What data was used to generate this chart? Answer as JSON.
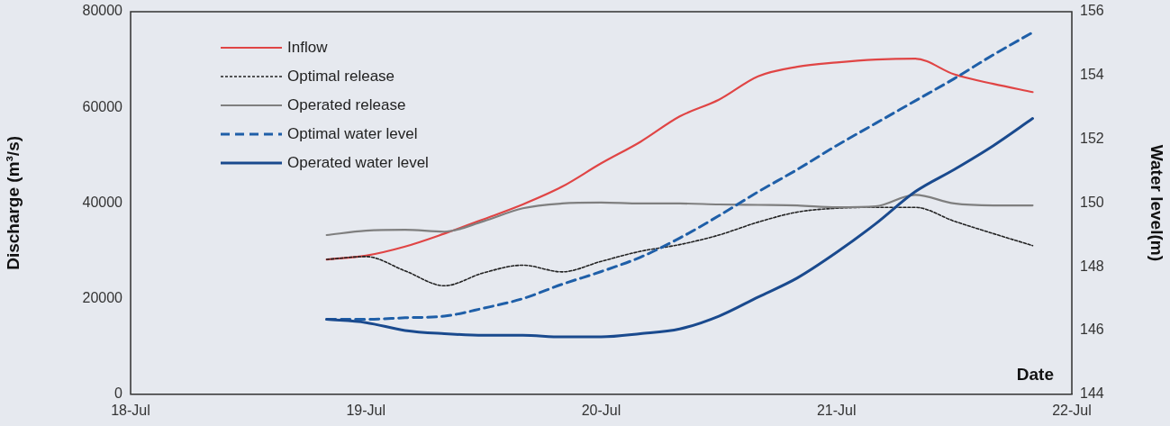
{
  "chart_data": {
    "type": "line",
    "xlabel": "Date",
    "ylabel": "Discharge (m³/s)",
    "y2label": "Water level(m)",
    "x": [
      "--07-18T20:00",
      "--07-19T00:00",
      "--07-19T04:00",
      "--07-19T08:00",
      "--07-19T12:00",
      "--07-19T16:00",
      "--07-19T20:00",
      "--07-20T00:00",
      "--07-20T04:00",
      "--07-20T08:00",
      "--07-20T12:00",
      "--07-20T16:00",
      "--07-20T20:00",
      "--07-21T00:00",
      "--07-21T04:00",
      "--07-21T08:00",
      "--07-21T12:00",
      "--07-21T16:00",
      "--07-21T20:00"
    ],
    "series": [
      {
        "name": "Inflow",
        "color": "#e04545",
        "line_style": "solid",
        "values": [
          28200,
          29000,
          30900,
          33600,
          36600,
          39700,
          43400,
          48300,
          52800,
          58100,
          61600,
          66500,
          68500,
          69400,
          70000,
          70200,
          66900,
          64900,
          63200
        ]
      },
      {
        "name": "Optimal release",
        "color": "#222222",
        "line_style": "dashed",
        "values": [
          28200,
          28800,
          25800,
          22700,
          25400,
          27000,
          25600,
          27800,
          29900,
          31300,
          33300,
          36000,
          38100,
          38900,
          39100,
          39100,
          36200,
          33600,
          31100
        ]
      },
      {
        "name": "Operated release",
        "color": "#7f7f7f",
        "line_style": "solid",
        "values": [
          33300,
          34200,
          34400,
          34000,
          36200,
          38900,
          39900,
          40100,
          39900,
          39900,
          39700,
          39600,
          39500,
          39100,
          39300,
          41700,
          39900,
          39500,
          39500
        ]
      },
      {
        "name": "Optimal water level",
        "color": "#1f5fa8",
        "line_style": "dashed",
        "axis": "y2",
        "values": [
          146.35,
          146.35,
          146.4,
          146.45,
          146.7,
          147.0,
          147.45,
          147.85,
          148.3,
          148.9,
          149.6,
          150.35,
          151.05,
          151.8,
          152.5,
          153.2,
          153.9,
          154.65,
          155.35
        ]
      },
      {
        "name": "Operated water level",
        "color": "#1a4a8e",
        "line_style": "solid",
        "axis": "y2",
        "values": [
          146.35,
          146.25,
          146.0,
          145.9,
          145.85,
          145.85,
          145.8,
          145.8,
          145.9,
          146.05,
          146.45,
          147.05,
          147.65,
          148.45,
          149.35,
          150.35,
          151.05,
          151.8,
          152.65
        ]
      }
    ],
    "xlim": [
      "--07-18",
      "--07-22"
    ],
    "xticks": [
      {
        "value": "--07-18",
        "label": "18-Jul"
      },
      {
        "value": "--07-19",
        "label": "19-Jul"
      },
      {
        "value": "--07-20",
        "label": "20-Jul"
      },
      {
        "value": "--07-21",
        "label": "21-Jul"
      },
      {
        "value": "--07-22",
        "label": "22-Jul"
      }
    ],
    "ylim": [
      0,
      80000
    ],
    "yticks": [
      0,
      20000,
      40000,
      60000,
      80000
    ],
    "y2lim": [
      144,
      156
    ],
    "y2ticks": [
      144,
      146,
      148,
      150,
      152,
      154,
      156
    ],
    "grid": false,
    "legend": "top left",
    "marker": "none"
  }
}
